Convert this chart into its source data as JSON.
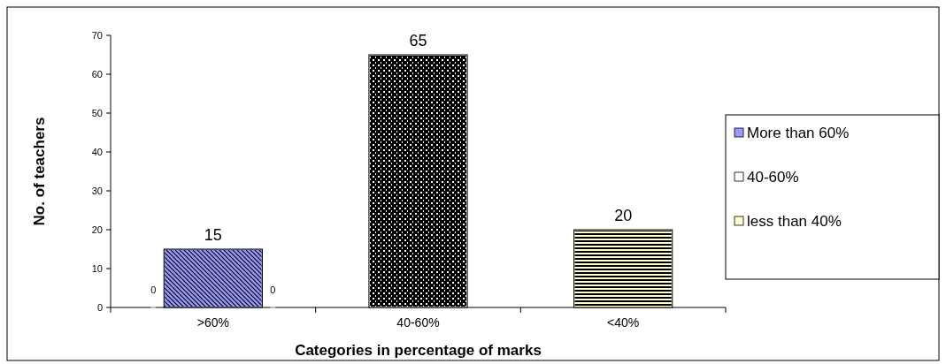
{
  "chart_data": {
    "type": "bar",
    "xlabel": "Categories in percentage of marks",
    "ylabel": "No. of teachers",
    "categories": [
      ">60%",
      "40-60%",
      "<40%"
    ],
    "series": [
      {
        "name": "More than 60%",
        "color": "#9999ff",
        "values": [
          15,
          null,
          null
        ]
      },
      {
        "name": "40-60%",
        "color": "#ffffff",
        "values": [
          0,
          65,
          null
        ]
      },
      {
        "name": "less than 40%",
        "color": "#ffffcc",
        "values": [
          0,
          null,
          20
        ]
      }
    ],
    "ylim": [
      0,
      70
    ],
    "yticks": [
      0,
      10,
      20,
      30,
      40,
      50,
      60,
      70
    ],
    "data_labels": true,
    "grid": false,
    "legend": "right"
  }
}
